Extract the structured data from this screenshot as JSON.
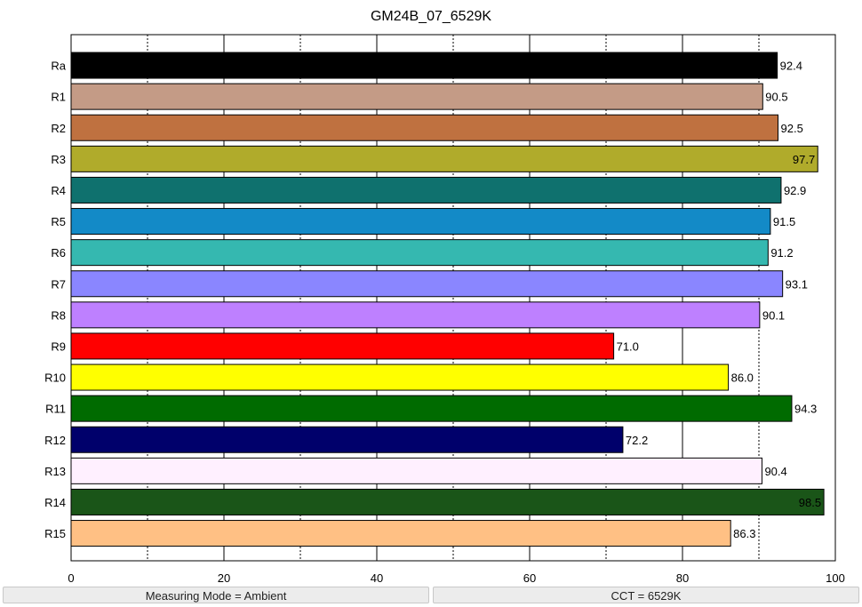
{
  "chart_data": {
    "type": "bar",
    "orientation": "horizontal",
    "title": "GM24B_07_6529K",
    "xlabel": "",
    "ylabel": "",
    "xlim": [
      0,
      100
    ],
    "xticks": [
      0,
      20,
      40,
      60,
      80,
      100
    ],
    "grid": "vertical dashed at every 10, solid at tick marks",
    "categories": [
      "Ra",
      "R1",
      "R2",
      "R3",
      "R4",
      "R5",
      "R6",
      "R7",
      "R8",
      "R9",
      "R10",
      "R11",
      "R12",
      "R13",
      "R14",
      "R15"
    ],
    "values": [
      92.4,
      90.5,
      92.5,
      97.7,
      92.9,
      91.5,
      91.2,
      93.1,
      90.1,
      71.0,
      86.0,
      94.3,
      72.2,
      90.4,
      98.5,
      86.3
    ],
    "value_labels": [
      "92.4",
      "90.5",
      "92.5",
      "97.7",
      "92.9",
      "91.5",
      "91.2",
      "93.1",
      "90.1",
      "71.0",
      "86.0",
      "94.3",
      "72.2",
      "90.4",
      "98.5",
      "86.3"
    ],
    "colors": [
      "#000000",
      "#c49b86",
      "#bf7140",
      "#b0ab2b",
      "#0f716e",
      "#138ac7",
      "#35b8b0",
      "#8a86ff",
      "#be80ff",
      "#ff0000",
      "#ffff00",
      "#006b00",
      "#00006b",
      "#fff0ff",
      "#1a5518",
      "#ffc084"
    ]
  },
  "status": {
    "left": "Measuring Mode = Ambient",
    "right": "CCT = 6529K"
  }
}
